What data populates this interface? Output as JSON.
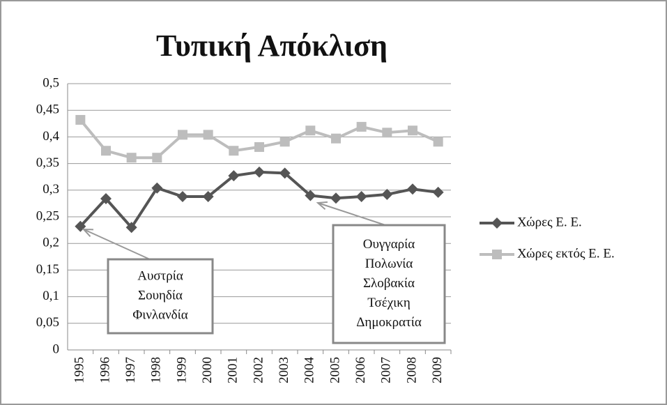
{
  "chart_data": {
    "type": "line",
    "title": "Τυπική Απόκλιση",
    "categories": [
      "1995",
      "1996",
      "1997",
      "1998",
      "1999",
      "2000",
      "2001",
      "2002",
      "2003",
      "2004",
      "2005",
      "2006",
      "2007",
      "2008",
      "2009"
    ],
    "series": [
      {
        "name": "Χώρες Ε. Ε.",
        "color": "#555555",
        "marker": "diamond",
        "values": [
          0.232,
          0.284,
          0.23,
          0.304,
          0.288,
          0.288,
          0.327,
          0.334,
          0.332,
          0.29,
          0.285,
          0.288,
          0.292,
          0.302,
          0.296
        ]
      },
      {
        "name": "Χώρες εκτός Ε. Ε.",
        "color": "#bdbdbd",
        "marker": "square",
        "values": [
          0.432,
          0.374,
          0.361,
          0.361,
          0.404,
          0.404,
          0.374,
          0.381,
          0.391,
          0.412,
          0.397,
          0.419,
          0.408,
          0.412,
          0.391
        ]
      }
    ],
    "ylim": [
      0,
      0.5
    ],
    "yticks": [
      0,
      {
        "value": 0.05,
        "label": "0,05"
      },
      {
        "value": 0.1,
        "label": "0,1"
      },
      {
        "value": 0.15,
        "label": "0,15"
      },
      {
        "value": 0.2,
        "label": "0,2"
      },
      {
        "value": 0.25,
        "label": "0,25"
      },
      {
        "value": 0.3,
        "label": "0,3"
      },
      {
        "value": 0.35,
        "label": "0,35"
      },
      {
        "value": 0.4,
        "label": "0,4"
      },
      {
        "value": 0.45,
        "label": "0,45"
      },
      {
        "value": 0.5,
        "label": "0,5"
      }
    ],
    "grid": true,
    "legend": "right",
    "annotations": [
      {
        "lines": [
          "Αυστρία",
          "Σουηδία",
          "Φινλανδία"
        ]
      },
      {
        "lines": [
          "Ουγγαρία",
          "Πολωνία",
          "Σλοβακία",
          "Τσέχικη",
          "Δημοκρατία"
        ]
      }
    ]
  }
}
